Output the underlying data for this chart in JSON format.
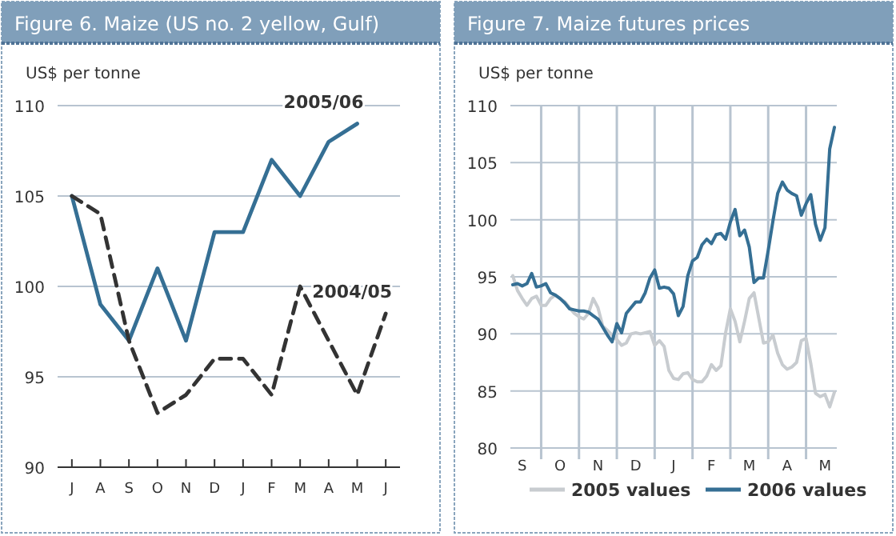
{
  "chart_data": [
    {
      "type": "line",
      "title": "Figure 6. Maize (US no. 2 yellow, Gulf)",
      "ylabel": "US$ per tonne",
      "categories": [
        "J",
        "A",
        "S",
        "O",
        "N",
        "D",
        "J",
        "F",
        "M",
        "A",
        "M",
        "J"
      ],
      "series": [
        {
          "name": "2005/06",
          "color": "#356f94",
          "line_style": "solid",
          "values": [
            105,
            99,
            97,
            101,
            97,
            103,
            103,
            107,
            105,
            108,
            109,
            null
          ]
        },
        {
          "name": "2004/05",
          "color": "#333333",
          "line_style": "dashed",
          "values": [
            105,
            104,
            97,
            93,
            94,
            96,
            96,
            94,
            100,
            97,
            94,
            98.5
          ]
        }
      ],
      "ylim": [
        90,
        110
      ],
      "yticks": [
        90,
        95,
        100,
        105,
        110
      ],
      "grid": "y",
      "legend": false,
      "marker": "none"
    },
    {
      "type": "line",
      "title": "Figure 7. Maize futures prices",
      "ylabel": "US$ per tonne",
      "categories": [
        null,
        null,
        "S",
        null,
        null,
        null,
        null,
        null,
        null,
        null,
        "O",
        null,
        null,
        null,
        null,
        null,
        null,
        null,
        "N",
        null,
        null,
        null,
        null,
        null,
        null,
        null,
        "D",
        null,
        null,
        null,
        null,
        null,
        null,
        null,
        "J",
        null,
        null,
        null,
        null,
        null,
        null,
        null,
        "F",
        null,
        null,
        null,
        null,
        null,
        null,
        null,
        "M",
        null,
        null,
        null,
        null,
        null,
        null,
        null,
        "A",
        null,
        null,
        null,
        null,
        null,
        null,
        null,
        "M",
        null,
        null
      ],
      "ylim": [
        80,
        110
      ],
      "yticks": [
        80,
        85,
        90,
        95,
        100,
        105,
        110
      ],
      "grid": true,
      "legend": "bottom",
      "marker": "none",
      "series": [
        {
          "name": "2005 values",
          "color": "#c8ccd0",
          "values": [
            95.1,
            93.8,
            93.1,
            92.5,
            93.1,
            93.3,
            92.5,
            92.5,
            93.1,
            93.4,
            93.1,
            92.8,
            92.3,
            91.8,
            91.5,
            91.3,
            91.8,
            93.1,
            92.3,
            90.7,
            90.3,
            89.9,
            89.5,
            89.0,
            89.2,
            90.0,
            90.1,
            90.0,
            90.1,
            90.2,
            89.0,
            89.4,
            88.9,
            86.8,
            86.1,
            86.0,
            86.5,
            86.6,
            86.0,
            85.8,
            85.8,
            86.3,
            87.3,
            86.8,
            87.2,
            90.1,
            92.2,
            91.1,
            89.3,
            91.1,
            93.1,
            93.6,
            91.4,
            89.2,
            89.3,
            89.9,
            88.3,
            87.3,
            86.9,
            87.1,
            87.5,
            89.4,
            89.6,
            87.4,
            84.8,
            84.5,
            84.7,
            83.6,
            84.9
          ]
        },
        {
          "name": "2006 values",
          "color": "#356f94",
          "values": [
            94.3,
            94.4,
            94.2,
            94.4,
            95.3,
            94.1,
            94.2,
            94.4,
            93.6,
            93.4,
            93.1,
            92.7,
            92.2,
            92.1,
            92.0,
            92.0,
            91.9,
            91.6,
            91.3,
            90.6,
            89.9,
            89.3,
            90.9,
            90.1,
            91.8,
            92.3,
            92.8,
            92.8,
            93.6,
            94.9,
            95.6,
            94.0,
            94.1,
            94.0,
            93.5,
            91.6,
            92.4,
            95.1,
            96.4,
            96.7,
            97.8,
            98.3,
            97.9,
            98.7,
            98.8,
            98.3,
            99.8,
            100.9,
            98.6,
            99.1,
            97.6,
            94.5,
            94.9,
            94.9,
            97.3,
            99.9,
            102.3,
            103.3,
            102.6,
            102.3,
            102.1,
            100.4,
            101.4,
            102.2,
            99.6,
            98.2,
            99.3,
            106.2,
            108.1
          ]
        }
      ]
    }
  ]
}
